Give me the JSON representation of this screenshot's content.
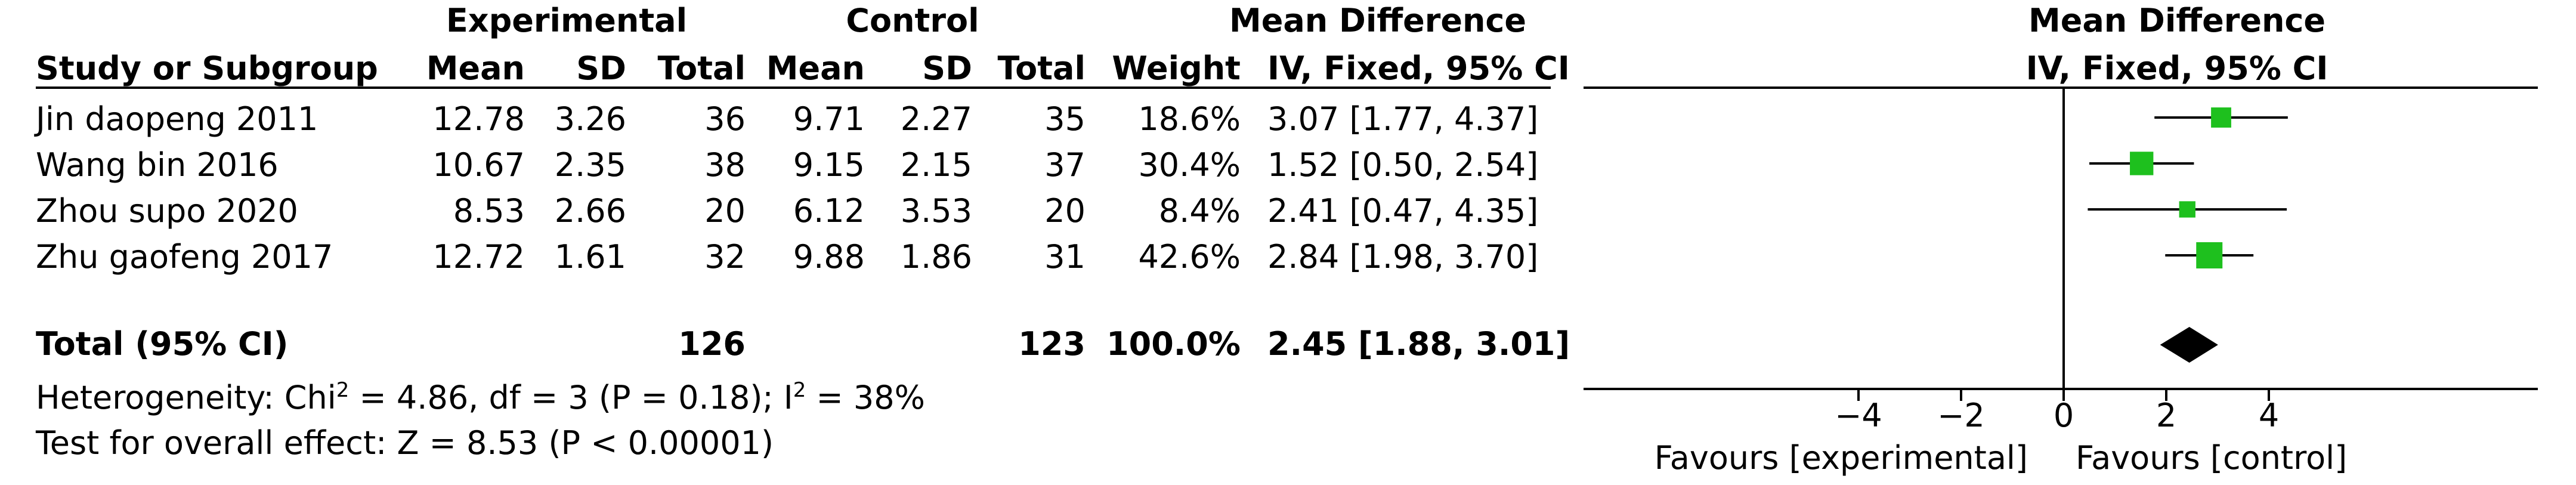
{
  "header": {
    "group_experimental": "Experimental",
    "group_control": "Control",
    "group_effect": "Mean Difference",
    "col_study": "Study or Subgroup",
    "col_mean": "Mean",
    "col_sd": "SD",
    "col_total": "Total",
    "col_weight": "Weight",
    "col_ci": "IV, Fixed, 95% CI",
    "plot_title": "Mean Difference",
    "plot_subtitle": "IV, Fixed, 95% CI"
  },
  "studies": [
    {
      "name": "Jin daopeng 2011",
      "exp_mean": "12.78",
      "exp_sd": "3.26",
      "exp_total": "36",
      "ctl_mean": "9.71",
      "ctl_sd": "2.27",
      "ctl_total": "35",
      "weight": "18.6%",
      "ci_text": "3.07 [1.77, 4.37]"
    },
    {
      "name": "Wang bin 2016",
      "exp_mean": "10.67",
      "exp_sd": "2.35",
      "exp_total": "38",
      "ctl_mean": "9.15",
      "ctl_sd": "2.15",
      "ctl_total": "37",
      "weight": "30.4%",
      "ci_text": "1.52 [0.50, 2.54]"
    },
    {
      "name": "Zhou supo 2020",
      "exp_mean": "8.53",
      "exp_sd": "2.66",
      "exp_total": "20",
      "ctl_mean": "6.12",
      "ctl_sd": "3.53",
      "ctl_total": "20",
      "weight": "8.4%",
      "ci_text": "2.41 [0.47, 4.35]"
    },
    {
      "name": "Zhu gaofeng 2017",
      "exp_mean": "12.72",
      "exp_sd": "1.61",
      "exp_total": "32",
      "ctl_mean": "9.88",
      "ctl_sd": "1.86",
      "ctl_total": "31",
      "weight": "42.6%",
      "ci_text": "2.84 [1.98, 3.70]"
    }
  ],
  "total": {
    "label": "Total (95% CI)",
    "exp_total": "126",
    "ctl_total": "123",
    "weight": "100.0%",
    "ci_text": "2.45 [1.88, 3.01]"
  },
  "heterogeneity": {
    "prefix": "Heterogeneity: Chi",
    "sup1": "2",
    "middle": " = 4.86, df = 3 (P = 0.18); I",
    "sup2": "2",
    "suffix": " = 38%"
  },
  "overall_effect": "Test for overall effect: Z = 8.53 (P < 0.00001)",
  "axis": {
    "favours_left": "Favours [experimental]",
    "favours_right": "Favours [control]"
  },
  "colors": {
    "marker": "#1ec01e",
    "diamond": "#000000",
    "line": "#000000"
  },
  "chart_data": {
    "type": "forest",
    "x_ticks": [
      -4,
      -2,
      0,
      2,
      4
    ],
    "xlim": [
      -10,
      10
    ],
    "studies": [
      {
        "name": "Jin daopeng 2011",
        "md": 3.07,
        "lower": 1.77,
        "upper": 4.37,
        "weight": 18.6
      },
      {
        "name": "Wang bin 2016",
        "md": 1.52,
        "lower": 0.5,
        "upper": 2.54,
        "weight": 30.4
      },
      {
        "name": "Zhou supo 2020",
        "md": 2.41,
        "lower": 0.47,
        "upper": 4.35,
        "weight": 8.4
      },
      {
        "name": "Zhu gaofeng 2017",
        "md": 2.84,
        "lower": 1.98,
        "upper": 3.7,
        "weight": 42.6
      }
    ],
    "pooled": {
      "md": 2.45,
      "lower": 1.88,
      "upper": 3.01
    }
  }
}
